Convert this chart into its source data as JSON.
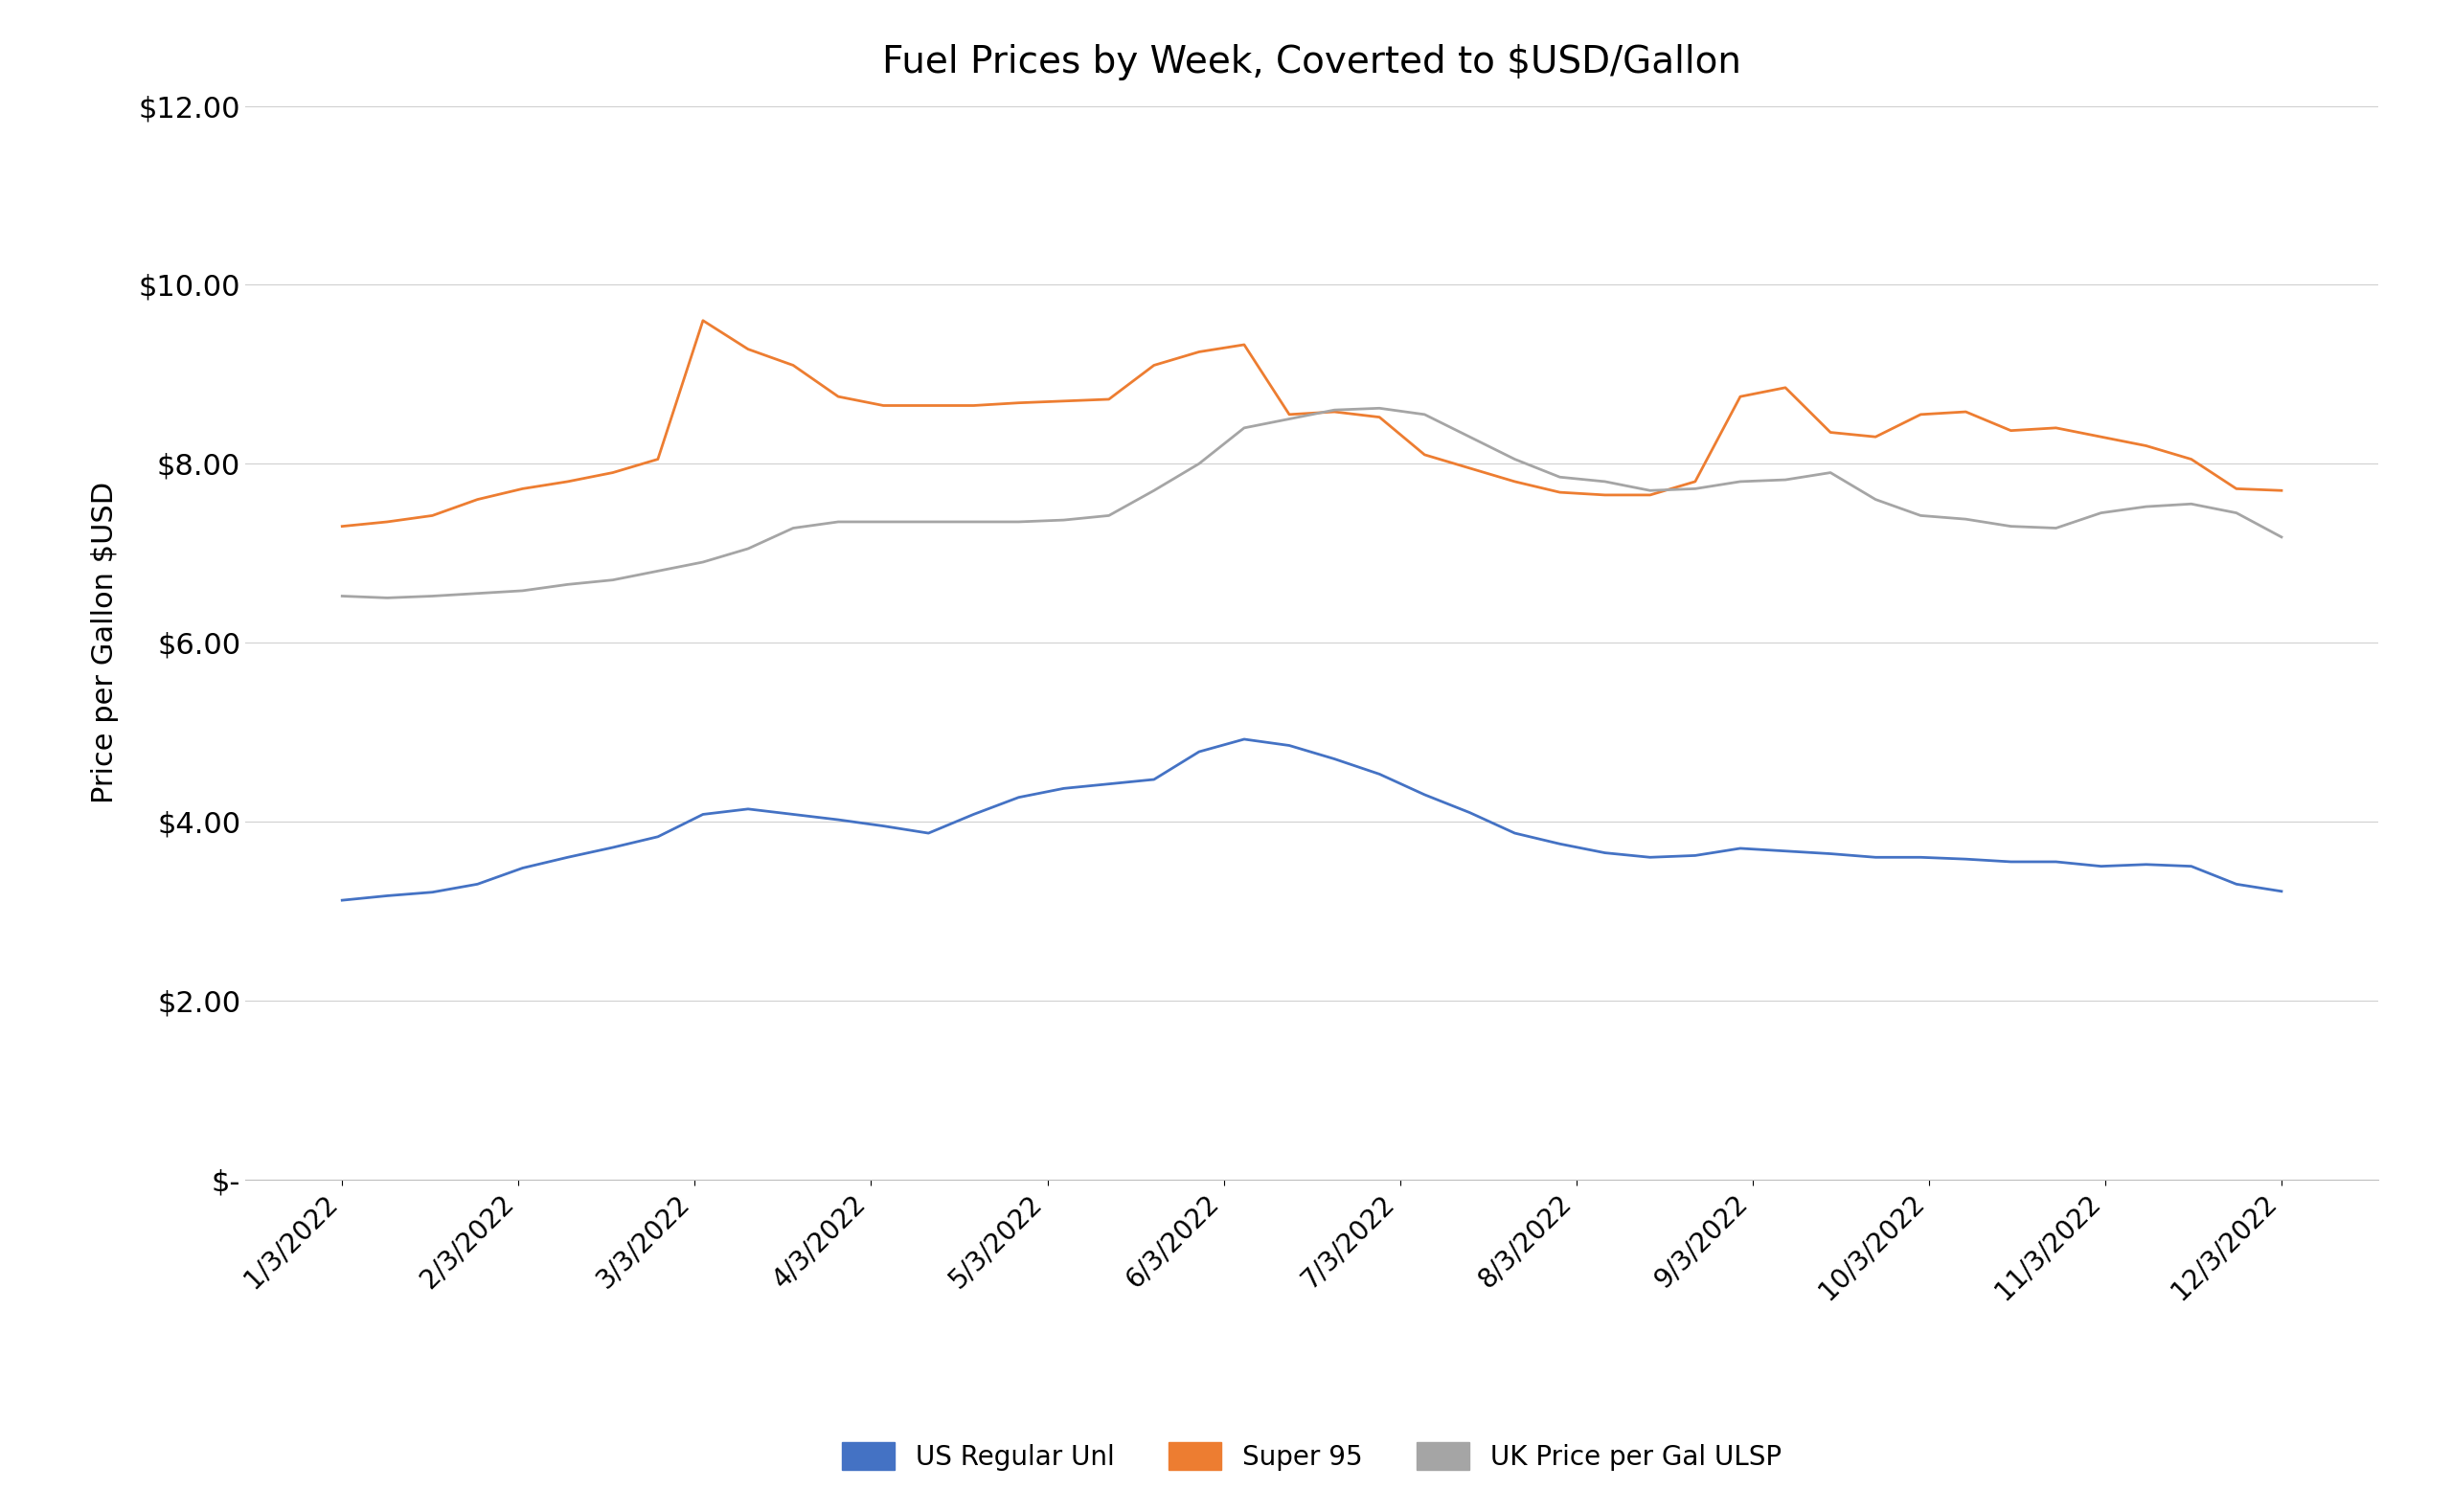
{
  "title": "Fuel Prices by Week, Coverted to $USD/Gallon",
  "ylabel": "Price per Gallon $USD",
  "background_color": "#ffffff",
  "ylim": [
    0,
    12.0
  ],
  "yticks": [
    0,
    2.0,
    4.0,
    6.0,
    8.0,
    10.0,
    12.0
  ],
  "ytick_labels": [
    "$-",
    "$2.00",
    "$4.00",
    "$6.00",
    "$8.00",
    "$10.00",
    "$12.00"
  ],
  "xtick_labels": [
    "1/3/2022",
    "2/3/2022",
    "3/3/2022",
    "4/3/2022",
    "5/3/2022",
    "6/3/2022",
    "7/3/2022",
    "8/3/2022",
    "9/3/2022",
    "10/3/2022",
    "11/3/2022",
    "12/3/2022"
  ],
  "us_color": "#4472C4",
  "super95_color": "#ED7D31",
  "uk_color": "#A5A5A5",
  "us_label": "US Regular Unl",
  "super95_label": "Super 95",
  "uk_label": "UK Price per Gal ULSP",
  "us_data": [
    3.12,
    3.17,
    3.21,
    3.3,
    3.48,
    3.6,
    3.71,
    3.83,
    4.08,
    4.14,
    4.08,
    4.02,
    3.95,
    3.87,
    4.08,
    4.27,
    4.37,
    4.42,
    4.47,
    4.78,
    4.92,
    4.85,
    4.7,
    4.53,
    4.3,
    4.1,
    3.87,
    3.75,
    3.65,
    3.6,
    3.62,
    3.7,
    3.67,
    3.64,
    3.6,
    3.6,
    3.58,
    3.55,
    3.55,
    3.5,
    3.52,
    3.5,
    3.3,
    3.22
  ],
  "super95_data": [
    7.3,
    7.35,
    7.42,
    7.6,
    7.72,
    7.8,
    7.9,
    8.05,
    9.6,
    9.28,
    9.1,
    8.75,
    8.65,
    8.65,
    8.65,
    8.68,
    8.7,
    8.72,
    9.1,
    9.25,
    9.33,
    8.55,
    8.58,
    8.52,
    8.1,
    7.95,
    7.8,
    7.68,
    7.65,
    7.65,
    7.8,
    8.75,
    8.85,
    8.35,
    8.3,
    8.55,
    8.58,
    8.37,
    8.4,
    8.3,
    8.2,
    8.05,
    7.72,
    7.7
  ],
  "uk_data": [
    6.52,
    6.5,
    6.52,
    6.55,
    6.58,
    6.65,
    6.7,
    6.8,
    6.9,
    7.05,
    7.28,
    7.35,
    7.35,
    7.35,
    7.35,
    7.35,
    7.37,
    7.42,
    7.7,
    8.0,
    8.4,
    8.5,
    8.6,
    8.62,
    8.55,
    8.3,
    8.05,
    7.85,
    7.8,
    7.7,
    7.72,
    7.8,
    7.82,
    7.9,
    7.6,
    7.42,
    7.38,
    7.3,
    7.28,
    7.45,
    7.52,
    7.55,
    7.45,
    7.18
  ]
}
